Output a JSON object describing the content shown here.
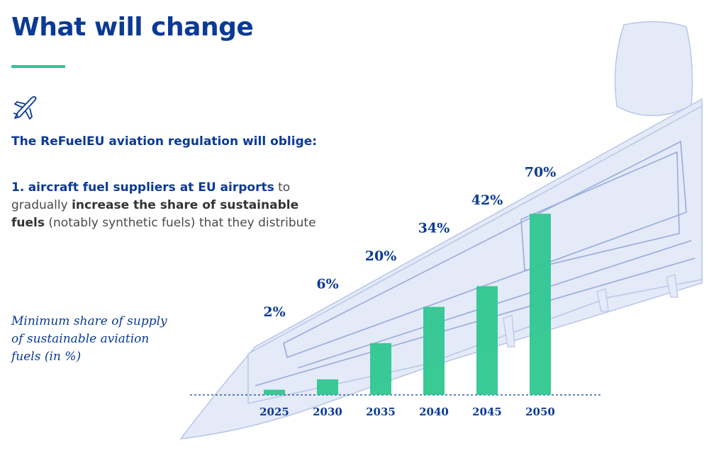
{
  "header": {
    "title": "What will change"
  },
  "intro": {
    "subheading": "The ReFuelEU aviation regulation will oblige:",
    "point_number": "1.",
    "point_subject": "aircraft fuel suppliers at EU airports",
    "point_text_1": "to gradually",
    "point_emphasis": "increase the share of sustainable fuels",
    "point_text_2": "(notably synthetic fuels) that they distribute"
  },
  "chart_caption": "Minimum share of supply of sustainable aviation fuels (in %)",
  "colors": {
    "brand_blue": "#0b3a96",
    "bar_green": "#2ec790",
    "accent_green": "#2ec790"
  },
  "icons": {
    "header_icon": "airplane-icon"
  },
  "chart_data": {
    "type": "bar",
    "categories": [
      "2025",
      "2030",
      "2035",
      "2040",
      "2045",
      "2050"
    ],
    "values": [
      2,
      6,
      20,
      34,
      42,
      70
    ],
    "value_labels": [
      "2%",
      "6%",
      "20%",
      "34%",
      "42%",
      "70%"
    ],
    "ylabel": "Minimum share of supply of sustainable aviation fuels (in %)",
    "unit": "%",
    "ylim": [
      0,
      70
    ],
    "grid": false,
    "legend": "none"
  }
}
